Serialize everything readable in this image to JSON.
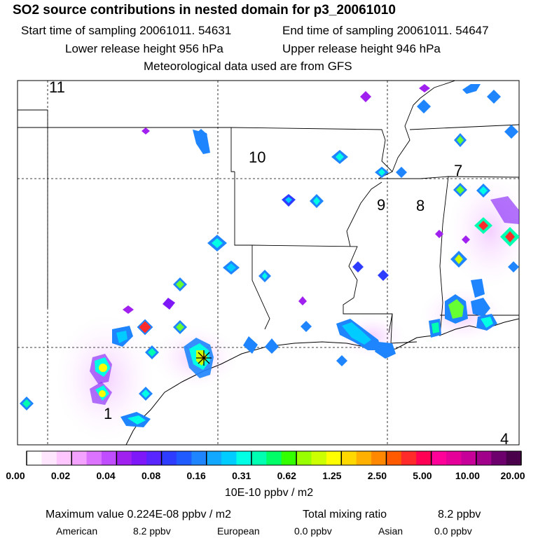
{
  "header": {
    "title": "SO2 source contributions in nested domain for p3_20061010",
    "start_time": "Start time of sampling 20061011. 54631",
    "end_time": "End time of sampling 20061011. 54647",
    "lower_height": "Lower release height  956 hPa",
    "upper_height": "Upper release height  946 hPa",
    "met_data": "Meteorological data used are from GFS"
  },
  "chart_data": {
    "type": "heatmap",
    "title": "SO2 source contributions in nested domain for p3_20061010",
    "colorbar": {
      "unit_label": "10E-10 ppbv / m2",
      "tick_labels": [
        "0.00",
        "0.02",
        "0.04",
        "0.08",
        "0.16",
        "0.31",
        "0.62",
        "1.25",
        "2.50",
        "5.00",
        "10.00",
        "20.00"
      ],
      "colors": [
        "#ffffff",
        "#ffe6ff",
        "#ffc6ff",
        "#f3a2ff",
        "#dc73ff",
        "#c04dff",
        "#a020f0",
        "#7e18f8",
        "#5a26ff",
        "#2e3cff",
        "#1f5bff",
        "#1f85ff",
        "#12a8ff",
        "#00ccff",
        "#00ffe4",
        "#00ffb0",
        "#00ff66",
        "#33ff00",
        "#99ff00",
        "#ccff00",
        "#ffff00",
        "#ffd800",
        "#ffb000",
        "#ff8800",
        "#ff5a00",
        "#ff2a2a",
        "#ff0055",
        "#ff0099",
        "#e6009a",
        "#c8009a",
        "#a0008a",
        "#6e006e",
        "#4a004a"
      ]
    },
    "region_labels": [
      "1",
      "4",
      "7",
      "8",
      "9",
      "10",
      "11"
    ],
    "source_marker": "receptor (star)",
    "plumes": [
      {
        "lon": 0.37,
        "lat": 0.73,
        "level": 9
      },
      {
        "lon": 0.18,
        "lat": 0.78,
        "level": 6
      },
      {
        "lon": 0.18,
        "lat": 0.86,
        "level": 6
      },
      {
        "lon": 0.93,
        "lat": 0.41,
        "level": 8
      },
      {
        "lon": 0.99,
        "lat": 0.44,
        "level": 8
      },
      {
        "lon": 0.84,
        "lat": 0.61,
        "level": 5
      },
      {
        "lon": 0.63,
        "lat": 0.67,
        "level": 4
      }
    ]
  },
  "footer": {
    "max_label": "Maximum value  0.224E-08 ppbv / m2",
    "total_label": "Total mixing ratio",
    "total_value": "8.2 ppbv",
    "american_label": "American",
    "american_value": "8.2 ppbv",
    "european_label": "European",
    "european_value": "0.0 ppbv",
    "asian_label": "Asian",
    "asian_value": "0.0 ppbv"
  }
}
